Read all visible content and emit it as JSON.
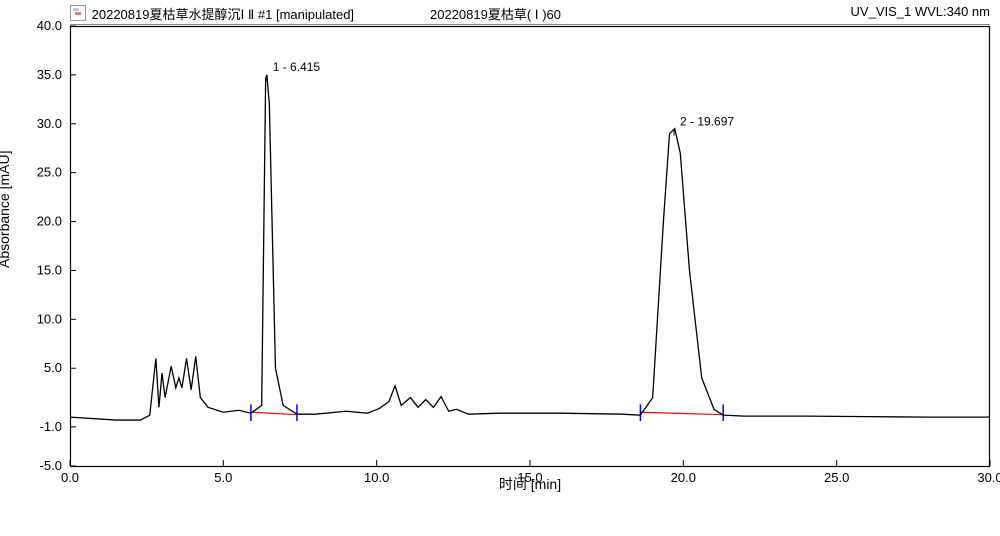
{
  "header": {
    "left_text": "20220819夏枯草水提醇沉Ⅰ Ⅱ #1 [manipulated]",
    "middle_text": "20220819夏枯草( Ⅰ )60",
    "right_text": "UV_VIS_1 WVL:340 nm"
  },
  "axes": {
    "x_label": "时间 [min]",
    "y_label": "Absorbance [mAU]",
    "xlim": [
      0,
      30
    ],
    "ylim": [
      -5,
      40
    ],
    "x_ticks": [
      0.0,
      5.0,
      10.0,
      15.0,
      20.0,
      25.0,
      30.0
    ],
    "y_ticks": [
      -5.0,
      -1.0,
      5.0,
      10.0,
      15.0,
      20.0,
      25.0,
      30.0,
      35.0,
      40.0
    ],
    "tick_fontsize": 13,
    "label_fontsize": 14
  },
  "style": {
    "trace_color": "#000000",
    "trace_width": 1.3,
    "baseline_color": "#ff0000",
    "marker_color": "#0000ff",
    "background_color": "#ffffff",
    "frame_color": "#000000"
  },
  "peaks": [
    {
      "id": 1,
      "label": "1 - 6.415",
      "rt": 6.415,
      "height": 34.8,
      "start": 5.9,
      "end": 7.4,
      "width": 0.22
    },
    {
      "id": 2,
      "label": "2 - 19.697",
      "rt": 19.697,
      "height": 29.2,
      "start": 18.6,
      "end": 21.3,
      "width": 0.65
    }
  ],
  "trace": {
    "type": "chromatogram",
    "points": [
      [
        0.0,
        0.0
      ],
      [
        1.5,
        -0.3
      ],
      [
        2.3,
        -0.3
      ],
      [
        2.6,
        0.2
      ],
      [
        2.8,
        6.0
      ],
      [
        2.9,
        1.0
      ],
      [
        3.0,
        4.5
      ],
      [
        3.1,
        2.0
      ],
      [
        3.3,
        5.2
      ],
      [
        3.45,
        3.0
      ],
      [
        3.55,
        4.0
      ],
      [
        3.65,
        3.0
      ],
      [
        3.8,
        6.0
      ],
      [
        3.95,
        2.8
      ],
      [
        4.1,
        6.2
      ],
      [
        4.25,
        2.0
      ],
      [
        4.5,
        1.0
      ],
      [
        5.0,
        0.5
      ],
      [
        5.5,
        0.7
      ],
      [
        5.9,
        0.4
      ],
      [
        6.25,
        1.2
      ],
      [
        6.38,
        34.6
      ],
      [
        6.42,
        35.0
      ],
      [
        6.5,
        32.0
      ],
      [
        6.7,
        5.0
      ],
      [
        6.95,
        1.2
      ],
      [
        7.4,
        0.3
      ],
      [
        8.0,
        0.3
      ],
      [
        9.0,
        0.6
      ],
      [
        9.7,
        0.4
      ],
      [
        10.1,
        0.9
      ],
      [
        10.4,
        1.6
      ],
      [
        10.6,
        3.2
      ],
      [
        10.8,
        1.2
      ],
      [
        11.1,
        2.0
      ],
      [
        11.35,
        1.0
      ],
      [
        11.6,
        1.8
      ],
      [
        11.85,
        1.0
      ],
      [
        12.1,
        2.1
      ],
      [
        12.35,
        0.6
      ],
      [
        12.6,
        0.8
      ],
      [
        13.0,
        0.3
      ],
      [
        14.0,
        0.4
      ],
      [
        16.0,
        0.4
      ],
      [
        18.0,
        0.3
      ],
      [
        18.6,
        0.2
      ],
      [
        19.0,
        2.0
      ],
      [
        19.35,
        20.0
      ],
      [
        19.55,
        29.0
      ],
      [
        19.72,
        29.5
      ],
      [
        19.9,
        27.0
      ],
      [
        20.2,
        15.0
      ],
      [
        20.6,
        4.0
      ],
      [
        21.0,
        0.8
      ],
      [
        21.3,
        0.2
      ],
      [
        22.0,
        0.1
      ],
      [
        24.0,
        0.1
      ],
      [
        26.0,
        0.05
      ],
      [
        28.0,
        0.0
      ],
      [
        30.0,
        0.0
      ]
    ]
  }
}
